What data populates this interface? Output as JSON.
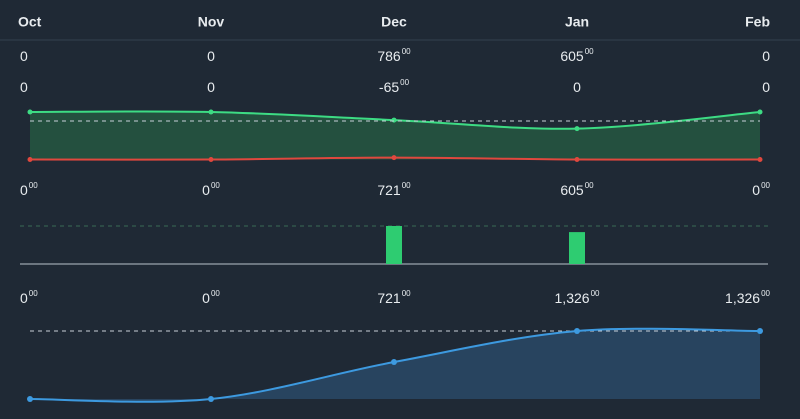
{
  "columns": [
    "Oct",
    "Nov",
    "Dec",
    "Jan",
    "Feb"
  ],
  "table": {
    "rows": [
      [
        [
          "0"
        ],
        [
          "0"
        ],
        [
          "786",
          "00"
        ],
        [
          "605",
          "00"
        ],
        [
          "0"
        ]
      ],
      [
        [
          "0"
        ],
        [
          "0"
        ],
        [
          "-65",
          "00"
        ],
        [
          "0"
        ],
        [
          "0"
        ]
      ]
    ]
  },
  "chart_data": [
    {
      "type": "area",
      "ylim": [
        0,
        100
      ],
      "reference": 81,
      "series": [
        {
          "color": "#3ddc84",
          "fill": "#24503f",
          "values": [
            100,
            100,
            83,
            65,
            100
          ]
        },
        {
          "color": "#e0483e",
          "values": [
            0,
            0,
            4,
            0,
            0
          ]
        }
      ]
    },
    {
      "type": "bar",
      "color": "#2ecc71",
      "ylim": [
        0,
        721
      ],
      "values": [
        0,
        0,
        721,
        605,
        0
      ],
      "value_labels": [
        [
          "0",
          "00"
        ],
        [
          "0",
          "00"
        ],
        [
          "721",
          "00"
        ],
        [
          "605",
          "00"
        ],
        [
          "0",
          "00"
        ]
      ]
    },
    {
      "type": "line",
      "color": "#3d9ae0",
      "fill": "#28445f",
      "ylim": [
        0,
        1326
      ],
      "values": [
        0,
        0,
        721,
        1326,
        1326
      ],
      "value_labels": [
        [
          "0",
          "00"
        ],
        [
          "0",
          "00"
        ],
        [
          "721",
          "00"
        ],
        [
          "1,326",
          "00"
        ],
        [
          "1,326",
          "00"
        ]
      ]
    }
  ]
}
